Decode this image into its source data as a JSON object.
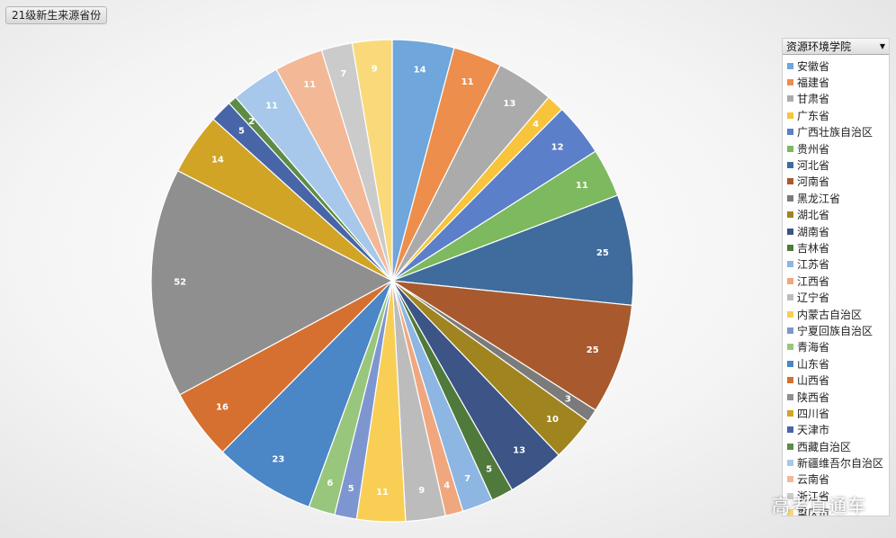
{
  "header": {
    "title": "21级新生来源省份"
  },
  "filter": {
    "selected": "资源环境学院",
    "icon": "chevron-down-icon"
  },
  "chart_data": {
    "type": "pie",
    "title": "21级新生来源省份",
    "legend_position": "right",
    "categories": [
      "安徽省",
      "福建省",
      "甘肃省",
      "广东省",
      "广西壮族自治区",
      "贵州省",
      "河北省",
      "河南省",
      "黑龙江省",
      "湖北省",
      "湖南省",
      "吉林省",
      "江苏省",
      "江西省",
      "辽宁省",
      "内蒙古自治区",
      "宁夏回族自治区",
      "青海省",
      "山东省",
      "山西省",
      "陕西省",
      "四川省",
      "天津市",
      "西藏自治区",
      "新疆维吾尔自治区",
      "云南省",
      "浙江省",
      "重庆市"
    ],
    "values": [
      14,
      11,
      13,
      4,
      12,
      11,
      25,
      25,
      3,
      10,
      13,
      5,
      7,
      4,
      9,
      11,
      5,
      6,
      23,
      16,
      52,
      14,
      5,
      2,
      11,
      11,
      7,
      9
    ],
    "colors": [
      "#6FA6DB",
      "#ED8E4C",
      "#ABABAB",
      "#F8C43B",
      "#5B7FC8",
      "#7DB95E",
      "#3F6C9C",
      "#A85A2E",
      "#7B7B7B",
      "#A08420",
      "#3C5486",
      "#507A3B",
      "#8DB6E2",
      "#F0A77E",
      "#BCBCBC",
      "#F8CE55",
      "#7E96D0",
      "#98C67D",
      "#4B86C6",
      "#D57030",
      "#8F8F8F",
      "#D1A426",
      "#4865A8",
      "#5D8C47",
      "#A7C8EA",
      "#F3B896",
      "#CBCBCB",
      "#FAD97A"
    ]
  },
  "watermark": "高考直通车"
}
